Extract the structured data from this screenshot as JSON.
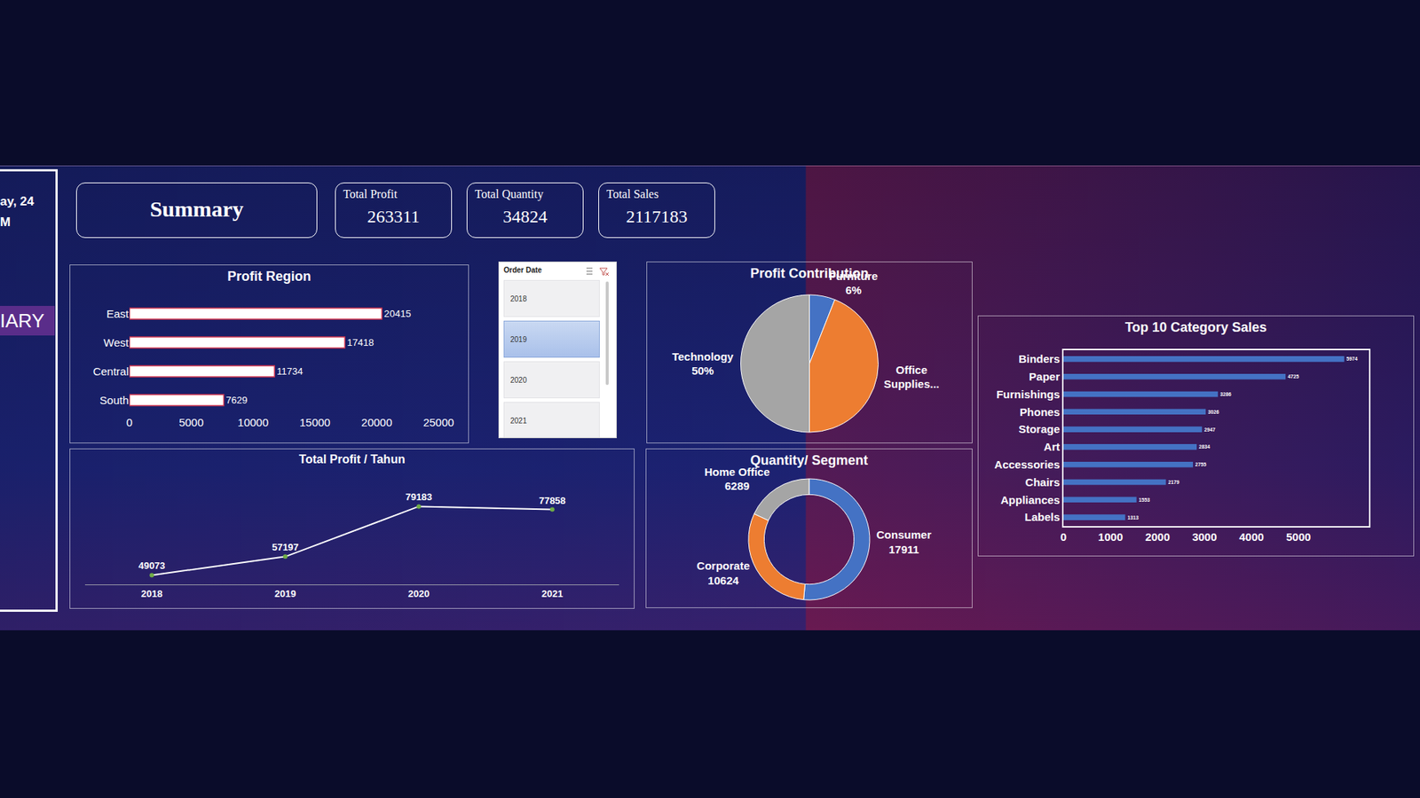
{
  "header": {
    "left_texts": [
      "ay, 24",
      "M"
    ],
    "left_tab": "IARY",
    "title": "Summary"
  },
  "kpis": [
    {
      "label": "Total Profit",
      "value": 263311
    },
    {
      "label": "Total Quantity",
      "value": 34824
    },
    {
      "label": "Total Sales",
      "value": 2117183
    }
  ],
  "slicer": {
    "title": "Order Date",
    "items": [
      "2018",
      "2019",
      "2020",
      "2021"
    ],
    "selected": "2019"
  },
  "chart_data": [
    {
      "type": "bar",
      "title": "Profit Region",
      "orientation": "horizontal",
      "categories": [
        "East",
        "West",
        "Central",
        "South"
      ],
      "values": [
        20415,
        17418,
        11734,
        7629
      ],
      "color": "#ffffff",
      "xlim": [
        0,
        25000
      ],
      "xticks": [
        0,
        5000,
        10000,
        15000,
        20000,
        25000
      ],
      "data_labels": true,
      "grid": false
    },
    {
      "type": "line",
      "title": "Total Profit / Tahun",
      "categories": [
        "2018",
        "2019",
        "2020",
        "2021"
      ],
      "values": [
        49073,
        57197,
        79183,
        77858
      ],
      "color": "#ffffff",
      "marker": "circle",
      "ylim": [
        45000,
        90000
      ],
      "yticks": [],
      "data_labels": true,
      "tick_labels": "x",
      "grid": false
    },
    {
      "type": "pie",
      "title": "Profit Contribution",
      "categories": [
        "Furniture",
        "Office Supplies...",
        "Technology"
      ],
      "values": [
        6,
        44,
        50
      ],
      "value_labels": [
        "6%",
        null,
        "50%"
      ],
      "colors": [
        "#4472c4",
        "#ed7d31",
        "#a5a5a5"
      ]
    },
    {
      "type": "donut",
      "title": "Quantity/ Segment",
      "categories": [
        "Consumer",
        "Corporate",
        "Home Office"
      ],
      "values": [
        17911,
        10624,
        6289
      ],
      "colors": [
        "#4472c4",
        "#ed7d31",
        "#a5a5a5"
      ],
      "data_labels": true
    },
    {
      "type": "bar",
      "title": "Top 10 Category Sales",
      "orientation": "horizontal",
      "categories": [
        "Binders",
        "Paper",
        "Furnishings",
        "Phones",
        "Storage",
        "Art",
        "Accessories",
        "Chairs",
        "Appliances",
        "Labels"
      ],
      "values": [
        5974,
        4725,
        3286,
        3026,
        2947,
        2834,
        2755,
        2179,
        1553,
        1313
      ],
      "color": "#4472c4",
      "xlim": [
        0,
        6500
      ],
      "xticks": [
        0,
        1000,
        2000,
        3000,
        4000,
        5000
      ],
      "data_labels": true,
      "grid": false
    }
  ]
}
